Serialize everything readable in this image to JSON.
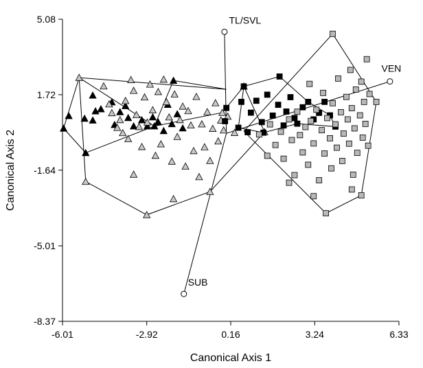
{
  "chart_data": {
    "type": "scatter",
    "title": "",
    "xlabel": "Canonical Axis 1",
    "ylabel": "Canonical Axis 2",
    "xlim": [
      -6.01,
      6.33
    ],
    "ylim": [
      -8.37,
      5.08
    ],
    "xticks": [
      "-6.01",
      "-2.92",
      "0.16",
      "3.24",
      "6.33"
    ],
    "yticks": [
      "5.08",
      "1.72",
      "-1.64",
      "-5.01",
      "-8.37"
    ],
    "grid": false,
    "legend": "none",
    "groups": [
      {
        "marker": "triangle",
        "fill": "#000000",
        "stroke": "#000000",
        "hull": [
          [
            -5.97,
            0.22
          ],
          [
            -5.4,
            2.48
          ],
          [
            0.0,
            1.96
          ],
          [
            -1.94,
            2.35
          ],
          [
            -2.64,
            0.32
          ],
          [
            -5.16,
            -0.87
          ],
          [
            -5.97,
            0.22
          ]
        ],
        "points": [
          [
            -5.97,
            0.22
          ],
          [
            -5.78,
            0.78
          ],
          [
            -5.2,
            0.66
          ],
          [
            -4.9,
            0.58
          ],
          [
            -4.8,
            0.99
          ],
          [
            -4.6,
            1.08
          ],
          [
            -4.2,
            1.39
          ],
          [
            -4.1,
            0.38
          ],
          [
            -3.9,
            0.95
          ],
          [
            -3.7,
            1.22
          ],
          [
            -3.6,
            0.69
          ],
          [
            -3.4,
            0.32
          ],
          [
            -3.1,
            0.59
          ],
          [
            -2.9,
            0.32
          ],
          [
            -2.7,
            0.72
          ],
          [
            -2.5,
            0.5
          ],
          [
            -2.3,
            0.11
          ],
          [
            -2.15,
            1.28
          ],
          [
            -2.0,
            0.42
          ],
          [
            -1.94,
            2.35
          ],
          [
            -1.8,
            0.86
          ],
          [
            -1.6,
            0.23
          ],
          [
            -5.16,
            -0.87
          ],
          [
            -4.9,
            1.69
          ],
          [
            -2.64,
            0.32
          ]
        ]
      },
      {
        "marker": "triangle",
        "fill": "#c8c8c8",
        "stroke": "#000000",
        "hull": [
          [
            -5.4,
            2.48
          ],
          [
            -2.64,
            0.32
          ],
          [
            -0.15,
            0.92
          ],
          [
            0.64,
            2.09
          ],
          [
            1.4,
            0.06
          ],
          [
            -0.6,
            -2.6
          ],
          [
            -2.92,
            -3.63
          ],
          [
            -5.16,
            -2.15
          ],
          [
            -5.4,
            2.48
          ]
        ],
        "points": [
          [
            -5.4,
            2.48
          ],
          [
            -4.5,
            2.1
          ],
          [
            -4.3,
            1.3
          ],
          [
            -4.2,
            0.91
          ],
          [
            -4.0,
            0.25
          ],
          [
            -3.9,
            0.6
          ],
          [
            -3.8,
            0.02
          ],
          [
            -3.7,
            1.45
          ],
          [
            -3.6,
            -0.25
          ],
          [
            -3.5,
            2.38
          ],
          [
            -3.4,
            1.9
          ],
          [
            -3.3,
            0.82
          ],
          [
            -3.2,
            0.29
          ],
          [
            -3.1,
            -0.6
          ],
          [
            -3.0,
            1.61
          ],
          [
            -2.9,
            0.49
          ],
          [
            -2.8,
            2.18
          ],
          [
            -2.7,
            1.04
          ],
          [
            -2.6,
            -0.99
          ],
          [
            -2.5,
            1.85
          ],
          [
            -2.4,
            -0.48
          ],
          [
            -2.3,
            2.4
          ],
          [
            -2.2,
            1.4
          ],
          [
            -2.1,
            0.72
          ],
          [
            -2.0,
            -1.25
          ],
          [
            -1.9,
            1.74
          ],
          [
            -1.8,
            -0.15
          ],
          [
            -1.7,
            0.6
          ],
          [
            -1.6,
            1.2
          ],
          [
            -1.5,
            -1.47
          ],
          [
            -1.4,
            1.0
          ],
          [
            -1.3,
            0.36
          ],
          [
            -1.2,
            -0.78
          ],
          [
            -1.1,
            1.63
          ],
          [
            -1.0,
            -1.94
          ],
          [
            -0.9,
            0.41
          ],
          [
            -0.8,
            -0.61
          ],
          [
            -0.7,
            0.95
          ],
          [
            -0.6,
            -1.22
          ],
          [
            -0.5,
            0.21
          ],
          [
            -0.4,
            1.35
          ],
          [
            -0.3,
            -0.35
          ],
          [
            -0.2,
            0.58
          ],
          [
            -0.1,
            0.14
          ],
          [
            0.05,
            0.75
          ],
          [
            0.3,
            0.03
          ],
          [
            -2.92,
            -3.63
          ],
          [
            -5.16,
            -2.15
          ],
          [
            -0.6,
            -2.6
          ],
          [
            1.4,
            0.06
          ],
          [
            0.64,
            2.09
          ],
          [
            -0.15,
            0.92
          ],
          [
            -1.94,
            -2.92
          ],
          [
            -3.4,
            -1.83
          ]
        ]
      },
      {
        "marker": "square",
        "fill": "#000000",
        "stroke": "#000000",
        "hull": [
          [
            0.44,
            0.25
          ],
          [
            0.64,
            2.09
          ],
          [
            1.95,
            2.53
          ],
          [
            3.0,
            1.4
          ],
          [
            3.8,
            0.8
          ],
          [
            4.0,
            0.3
          ],
          [
            2.6,
            0.43
          ],
          [
            1.36,
            0.03
          ],
          [
            0.44,
            0.25
          ]
        ],
        "points": [
          [
            0.44,
            0.25
          ],
          [
            0.64,
            2.09
          ],
          [
            1.95,
            2.53
          ],
          [
            0.0,
            1.13
          ],
          [
            0.55,
            1.4
          ],
          [
            0.9,
            0.92
          ],
          [
            1.1,
            1.45
          ],
          [
            1.3,
            0.5
          ],
          [
            1.36,
            0.03
          ],
          [
            1.5,
            1.72
          ],
          [
            1.7,
            0.79
          ],
          [
            1.9,
            1.27
          ],
          [
            2.1,
            0.35
          ],
          [
            2.2,
            0.97
          ],
          [
            2.35,
            1.61
          ],
          [
            2.5,
            0.68
          ],
          [
            2.6,
            0.43
          ],
          [
            2.8,
            1.16
          ],
          [
            3.0,
            1.4
          ],
          [
            3.2,
            0.62
          ],
          [
            3.4,
            0.91
          ],
          [
            3.6,
            1.4
          ],
          [
            3.8,
            0.8
          ],
          [
            4.0,
            0.3
          ],
          [
            0.78,
            0.05
          ],
          [
            -0.05,
            0.54
          ]
        ]
      },
      {
        "marker": "square",
        "fill": "#b8b8b8",
        "stroke": "#000000",
        "hull": [
          [
            0.64,
            0.09
          ],
          [
            3.9,
            4.43
          ],
          [
            5.5,
            1.4
          ],
          [
            4.95,
            -2.76
          ],
          [
            3.65,
            -3.56
          ],
          [
            0.64,
            0.09
          ]
        ],
        "points": [
          [
            3.9,
            4.43
          ],
          [
            5.5,
            1.4
          ],
          [
            4.95,
            -2.76
          ],
          [
            3.65,
            -3.56
          ],
          [
            1.2,
            -0.05
          ],
          [
            1.6,
            0.4
          ],
          [
            1.8,
            -0.52
          ],
          [
            2.0,
            0.07
          ],
          [
            2.1,
            -1.13
          ],
          [
            2.3,
            0.62
          ],
          [
            2.4,
            -0.3
          ],
          [
            2.5,
            -1.86
          ],
          [
            2.6,
            0.96
          ],
          [
            2.7,
            -0.08
          ],
          [
            2.8,
            -0.85
          ],
          [
            2.9,
            0.28
          ],
          [
            3.0,
            -1.4
          ],
          [
            3.05,
            2.2
          ],
          [
            3.1,
            0.55
          ],
          [
            3.2,
            -0.45
          ],
          [
            3.3,
            1.05
          ],
          [
            3.4,
            -2.09
          ],
          [
            3.5,
            0.14
          ],
          [
            3.55,
            1.8
          ],
          [
            3.6,
            -0.9
          ],
          [
            3.7,
            0.68
          ],
          [
            3.8,
            -0.22
          ],
          [
            3.85,
            -1.56
          ],
          [
            3.9,
            1.34
          ],
          [
            4.0,
            0.4
          ],
          [
            4.05,
            -0.64
          ],
          [
            4.1,
            2.44
          ],
          [
            4.2,
            0.94
          ],
          [
            4.25,
            -1.23
          ],
          [
            4.3,
            -0.01
          ],
          [
            4.4,
            1.62
          ],
          [
            4.45,
            0.62
          ],
          [
            4.5,
            -0.46
          ],
          [
            4.55,
            2.82
          ],
          [
            4.6,
            1.12
          ],
          [
            4.65,
            -1.84
          ],
          [
            4.7,
            0.22
          ],
          [
            4.75,
            1.95
          ],
          [
            4.8,
            -0.87
          ],
          [
            4.9,
            0.8
          ],
          [
            4.95,
            2.3
          ],
          [
            5.0,
            -0.19
          ],
          [
            5.05,
            1.4
          ],
          [
            5.1,
            0.42
          ],
          [
            5.15,
            3.3
          ],
          [
            5.2,
            -0.55
          ],
          [
            5.25,
            1.75
          ],
          [
            4.6,
            -2.5
          ],
          [
            3.2,
            -2.8
          ],
          [
            2.3,
            -2.2
          ],
          [
            1.5,
            -1.0
          ]
        ]
      }
    ],
    "vectors": [
      {
        "label": "TL/SVL",
        "end": [
          -0.07,
          4.52
        ]
      },
      {
        "label": "VEN",
        "end": [
          6.0,
          2.31
        ]
      },
      {
        "label": "SUB",
        "end": [
          -1.56,
          -7.15
        ]
      }
    ]
  }
}
